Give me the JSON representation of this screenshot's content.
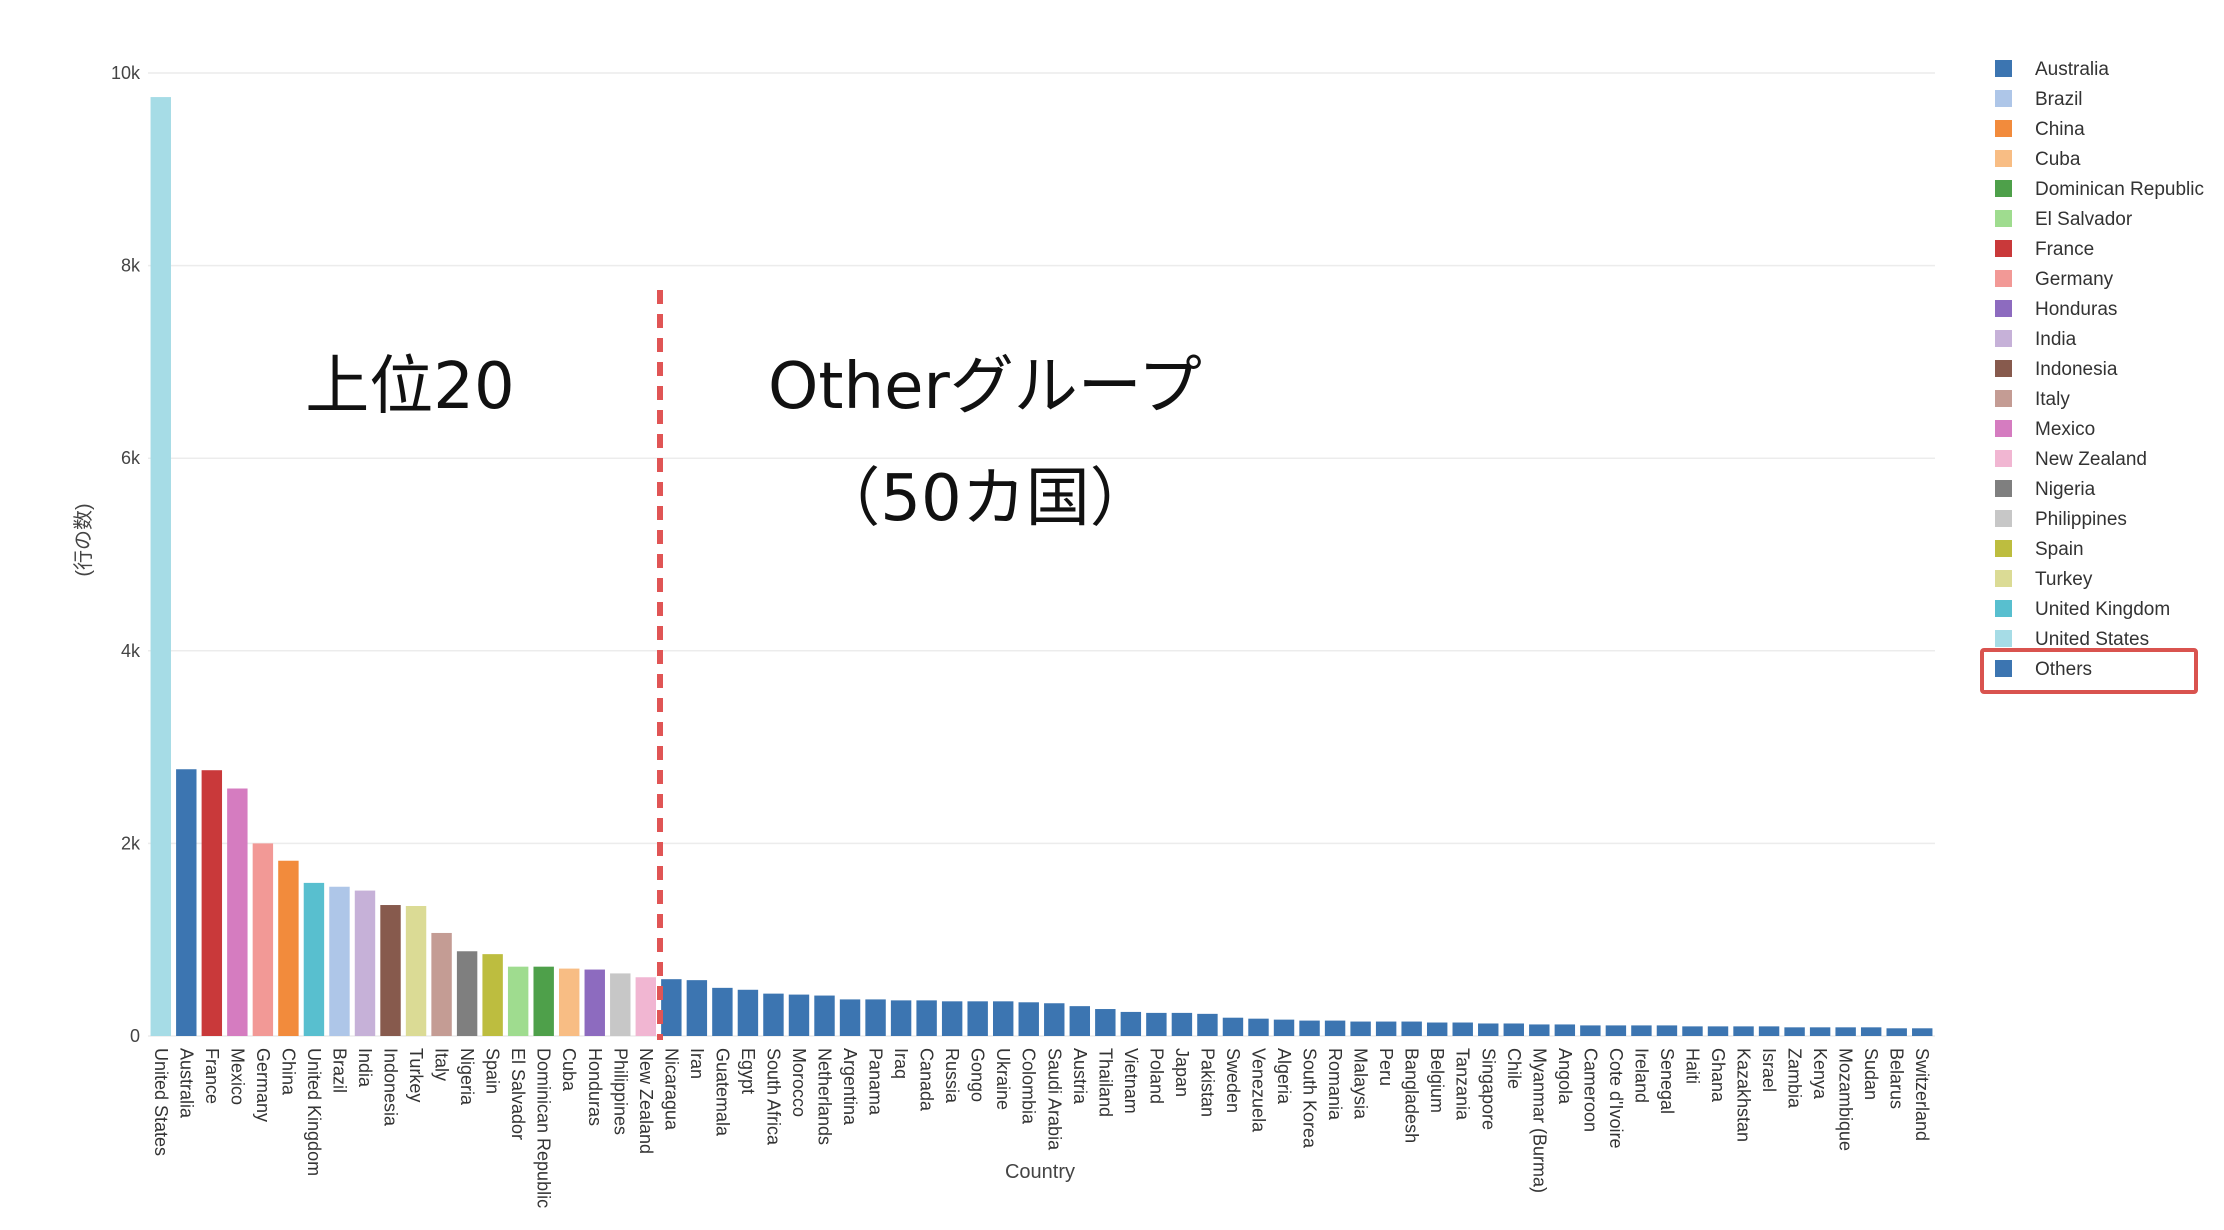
{
  "chart_data": {
    "type": "bar",
    "xlabel": "Country",
    "ylabel": "(行の数)",
    "ylim": [
      0,
      10000
    ],
    "yticks": [
      0,
      2000,
      4000,
      6000,
      8000,
      10000
    ],
    "ytick_labels": [
      "0",
      "2k",
      "4k",
      "6k",
      "8k",
      "10k"
    ],
    "grid": true,
    "legend_position": "right",
    "categories": [
      "United States",
      "Australia",
      "France",
      "Mexico",
      "Germany",
      "China",
      "United Kingdom",
      "Brazil",
      "India",
      "Indonesia",
      "Turkey",
      "Italy",
      "Nigeria",
      "Spain",
      "El Salvador",
      "Dominican Republic",
      "Cuba",
      "Honduras",
      "Philippines",
      "New Zealand",
      "Nicaragua",
      "Iran",
      "Guatemala",
      "Egypt",
      "South Africa",
      "Morocco",
      "Netherlands",
      "Argentina",
      "Panama",
      "Iraq",
      "Canada",
      "Russia",
      "Gongo",
      "Ukraine",
      "Colombia",
      "Saudi Arabia",
      "Austria",
      "Thailand",
      "Vietnam",
      "Poland",
      "Japan",
      "Pakistan",
      "Sweden",
      "Venezuela",
      "Algeria",
      "South Korea",
      "Romania",
      "Malaysia",
      "Peru",
      "Bangladesh",
      "Belgium",
      "Tanzania",
      "Singapore",
      "Chile",
      "Myanmar (Burma)",
      "Angola",
      "Cameroon",
      "Cote d'Ivoire",
      "Ireland",
      "Senegal",
      "Haiti",
      "Ghana",
      "Kazakhstan",
      "Israel",
      "Zambia",
      "Kenya",
      "Mozambique",
      "Sudan",
      "Belarus",
      "Switzerland"
    ],
    "values": [
      9750,
      2770,
      2760,
      2570,
      2000,
      1820,
      1590,
      1550,
      1510,
      1360,
      1350,
      1070,
      880,
      850,
      720,
      720,
      700,
      690,
      650,
      610,
      590,
      580,
      500,
      480,
      440,
      430,
      420,
      380,
      380,
      370,
      370,
      360,
      360,
      360,
      350,
      340,
      310,
      280,
      250,
      240,
      240,
      230,
      190,
      180,
      170,
      160,
      160,
      150,
      150,
      150,
      140,
      140,
      130,
      130,
      120,
      120,
      110,
      110,
      110,
      110,
      100,
      100,
      100,
      100,
      90,
      90,
      90,
      90,
      80,
      80
    ],
    "top_group_count": 20,
    "legend": [
      {
        "name": "Australia",
        "color": "#3c75b1"
      },
      {
        "name": "Brazil",
        "color": "#aec6e8"
      },
      {
        "name": "China",
        "color": "#f28b3c"
      },
      {
        "name": "Cuba",
        "color": "#f8bd84"
      },
      {
        "name": "Dominican Republic",
        "color": "#4ea04a"
      },
      {
        "name": "El Salvador",
        "color": "#9fdc8f"
      },
      {
        "name": "France",
        "color": "#c9393a"
      },
      {
        "name": "Germany",
        "color": "#f29996"
      },
      {
        "name": "Honduras",
        "color": "#8d6bbf"
      },
      {
        "name": "India",
        "color": "#c6b1d8"
      },
      {
        "name": "Indonesia",
        "color": "#875a4d"
      },
      {
        "name": "Italy",
        "color": "#c49c94"
      },
      {
        "name": "Mexico",
        "color": "#d57cc0"
      },
      {
        "name": "New Zealand",
        "color": "#f1b6d2"
      },
      {
        "name": "Nigeria",
        "color": "#7f7f7f"
      },
      {
        "name": "Philippines",
        "color": "#c7c7c7"
      },
      {
        "name": "Spain",
        "color": "#bdbd3f"
      },
      {
        "name": "Turkey",
        "color": "#dbdb95"
      },
      {
        "name": "United Kingdom",
        "color": "#58bfcf"
      },
      {
        "name": "United States",
        "color": "#a6dce6"
      },
      {
        "name": "Others",
        "color": "#3c75b1"
      }
    ],
    "highlighted_legend_item": "Others",
    "annotations": {
      "left_group": "上位20",
      "right_group_line1": "Otherグループ",
      "right_group_line2": "（50カ国）"
    },
    "colors": {
      "divider_line": "#e05555",
      "highlight_box": "#d9534f",
      "gridline": "#ececec"
    }
  }
}
